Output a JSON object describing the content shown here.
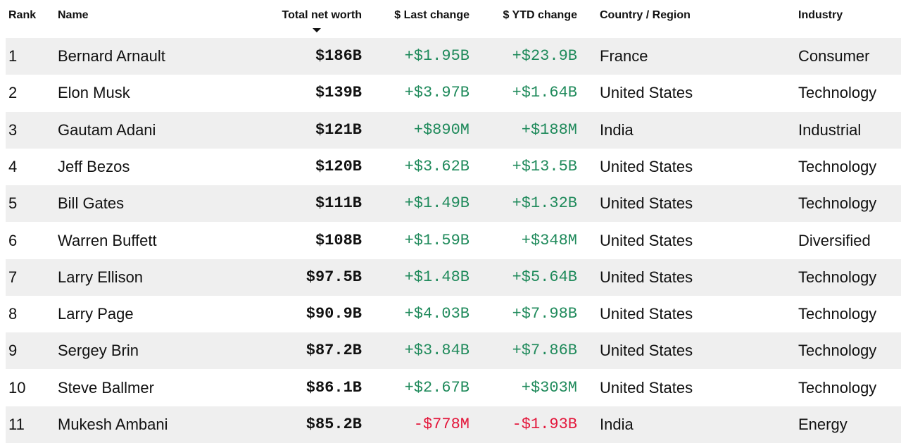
{
  "table": {
    "header": [
      "Rank",
      "Name",
      "Total net worth",
      "$ Last change",
      "$ YTD change",
      "Country / Region",
      "Industry"
    ],
    "rows": [
      [
        "1",
        "Bernard Arnault",
        "$186B",
        "+$1.95B",
        "+$23.9B",
        "France",
        "Consumer"
      ],
      [
        "2",
        "Elon Musk",
        "$139B",
        "+$3.97B",
        "+$1.64B",
        "United States",
        "Technology"
      ],
      [
        "3",
        "Gautam Adani",
        "$121B",
        "+$890M",
        "+$188M",
        "India",
        "Industrial"
      ],
      [
        "4",
        "Jeff Bezos",
        "$120B",
        "+$3.62B",
        "+$13.5B",
        "United States",
        "Technology"
      ],
      [
        "5",
        "Bill Gates",
        "$111B",
        "+$1.49B",
        "+$1.32B",
        "United States",
        "Technology"
      ],
      [
        "6",
        "Warren Buffett",
        "$108B",
        "+$1.59B",
        "+$348M",
        "United States",
        "Diversified"
      ],
      [
        "7",
        "Larry Ellison",
        "$97.5B",
        "+$1.48B",
        "+$5.64B",
        "United States",
        "Technology"
      ],
      [
        "8",
        "Larry Page",
        "$90.9B",
        "+$4.03B",
        "+$7.98B",
        "United States",
        "Technology"
      ],
      [
        "9",
        "Sergey Brin",
        "$87.2B",
        "+$3.84B",
        "+$7.86B",
        "United States",
        "Technology"
      ],
      [
        "10",
        "Steve Ballmer",
        "$86.1B",
        "+$2.67B",
        "+$303M",
        "United States",
        "Technology"
      ],
      [
        "11",
        "Mukesh Ambani",
        "$85.2B",
        "-$778M",
        "-$1.93B",
        "India",
        "Energy"
      ]
    ]
  }
}
